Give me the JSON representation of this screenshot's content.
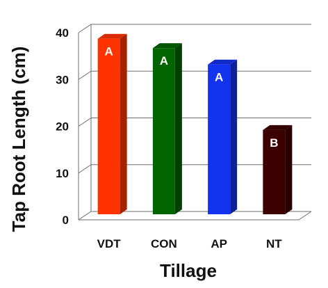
{
  "chart_data": {
    "type": "bar",
    "categories": [
      "VDT",
      "CON",
      "AP",
      "NT"
    ],
    "values": [
      39,
      37,
      33.5,
      19.5
    ],
    "data_labels": [
      "A",
      "A",
      "A",
      "B"
    ],
    "colors": [
      "#ff3300",
      "#006400",
      "#1433ee",
      "#3d0000"
    ],
    "xlabel": "Tillage",
    "ylabel": "Tap Root Length (cm)",
    "ylim": [
      0,
      40
    ],
    "yticks": [
      "0",
      "10",
      "20",
      "30",
      "40"
    ],
    "grid": true,
    "three_d": true
  }
}
